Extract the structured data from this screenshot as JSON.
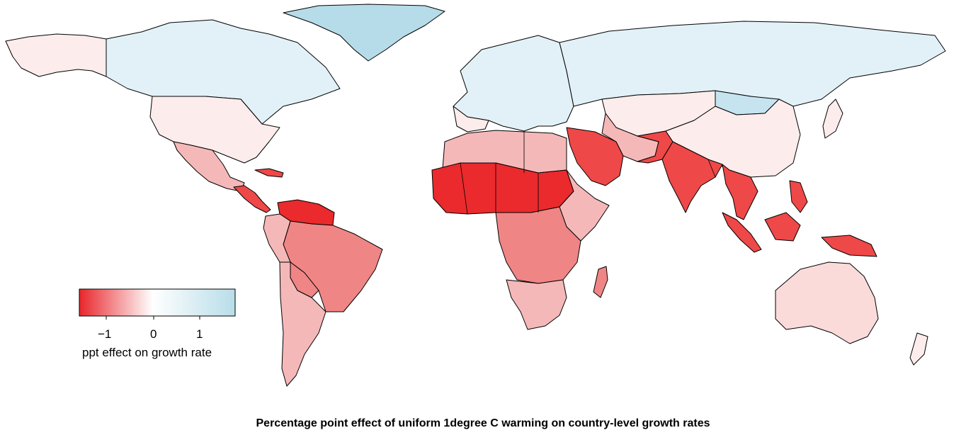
{
  "caption": "Percentage point effect of uniform 1degree C warming on country-level growth rates",
  "legend": {
    "title": "ppt effect on growth rate",
    "ticks": [
      "−1",
      "0",
      "1"
    ],
    "range": [
      -1.6,
      1.8
    ],
    "low_color": "#e8262b",
    "mid_color": "#ffffff",
    "high_color": "#b8dde9"
  },
  "colors": {
    "strong_red": "#ea2a2c",
    "red": "#ee4848",
    "mid_red": "#f08585",
    "light_red": "#f5b8b8",
    "pale_red": "#fbdada",
    "faint_red": "#fdecec",
    "faint_blue": "#e2f1f7",
    "light_blue": "#c6e4ef",
    "blue": "#b6dce9"
  }
}
